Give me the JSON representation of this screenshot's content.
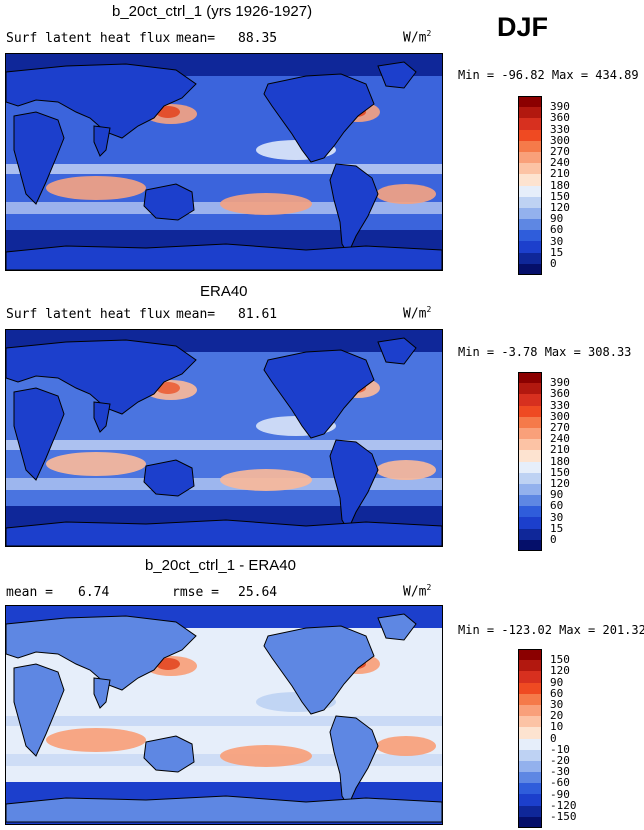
{
  "season": "DJF",
  "units_prefix": "W/m",
  "units_exp": "2",
  "panels": [
    {
      "title": "b_20ct_ctrl_1 (yrs 1926-1927)",
      "subtitle": "Surf latent heat flux",
      "stat1_label": "mean=",
      "stat1_value": "88.35",
      "stat2_label": "",
      "stat2_value": "",
      "minmax": "Min = -96.82 Max = 434.89",
      "colorbar_labels": [
        "390",
        "360",
        "330",
        "300",
        "270",
        "240",
        "210",
        "180",
        "150",
        "120",
        "90",
        "60",
        "30",
        "15",
        "0"
      ],
      "colorbar_colors": [
        "#8b0000",
        "#b2180f",
        "#d7301f",
        "#ef4a22",
        "#f57a4a",
        "#f9a07a",
        "#fcc3a5",
        "#fde3d0",
        "#e6eefa",
        "#bed2f3",
        "#93b1ed",
        "#5e87e3",
        "#2f5ddb",
        "#1c3fcc",
        "#0f2799",
        "#050f6a"
      ],
      "mean_level": 120,
      "field_colors": {
        "ocean": "#3b64dc",
        "warm": "#f3a282",
        "hot": "#e34a25",
        "pale": "#dce6f8",
        "land": "#1c3fcc",
        "polar": "#0f2799"
      }
    },
    {
      "title": "ERA40",
      "subtitle": "Surf latent heat flux",
      "stat1_label": "mean=",
      "stat1_value": "81.61",
      "stat2_label": "",
      "stat2_value": "",
      "minmax": "Min =  -3.78 Max = 308.33",
      "colorbar_labels": [
        "390",
        "360",
        "330",
        "300",
        "270",
        "240",
        "210",
        "180",
        "150",
        "120",
        "90",
        "60",
        "30",
        "15",
        "0"
      ],
      "colorbar_colors": [
        "#8b0000",
        "#b2180f",
        "#d7301f",
        "#ef4a22",
        "#f57a4a",
        "#f9a07a",
        "#fcc3a5",
        "#fde3d0",
        "#e6eefa",
        "#bed2f3",
        "#93b1ed",
        "#5e87e3",
        "#2f5ddb",
        "#1c3fcc",
        "#0f2799",
        "#050f6a"
      ],
      "field_colors": {
        "ocean": "#4a74e0",
        "warm": "#f9b99a",
        "hot": "#ea6138",
        "pale": "#d6e2f7",
        "land": "#1c3fcc",
        "polar": "#0f2799"
      }
    },
    {
      "title": "b_20ct_ctrl_1 - ERA40",
      "subtitle": "",
      "stat1_label": "mean =",
      "stat1_value": "6.74",
      "stat2_label": "rmse =",
      "stat2_value": "25.64",
      "minmax": "Min = -123.02 Max = 201.32",
      "colorbar_labels": [
        "150",
        "120",
        "90",
        "60",
        "30",
        "20",
        "10",
        "0",
        "-10",
        "-20",
        "-30",
        "-60",
        "-90",
        "-120",
        "-150"
      ],
      "colorbar_colors": [
        "#8b0000",
        "#b2180f",
        "#d7301f",
        "#ef4a22",
        "#f57a4a",
        "#f9a07a",
        "#fcc3a5",
        "#fde3d0",
        "#e6eefa",
        "#bed2f3",
        "#93b1ed",
        "#5e87e3",
        "#2f5ddb",
        "#1c3fcc",
        "#0f2799",
        "#050f6a"
      ],
      "field_colors": {
        "ocean": "#e6eefa",
        "warm": "#f9a07a",
        "hot": "#e34a25",
        "pale": "#bed2f3",
        "land": "#5e87e3",
        "polar": "#1c3fcc"
      }
    }
  ],
  "chart_data": [
    {
      "type": "heatmap",
      "title": "b_20ct_ctrl_1 (yrs 1926-1927)",
      "subtitle": "Surf latent heat flux",
      "units": "W/m^2",
      "mean": 88.35,
      "min": -96.82,
      "max": 434.89,
      "contour_levels": [
        0,
        15,
        30,
        60,
        90,
        120,
        150,
        180,
        210,
        240,
        270,
        300,
        330,
        360,
        390
      ],
      "season": "DJF"
    },
    {
      "type": "heatmap",
      "title": "ERA40",
      "subtitle": "Surf latent heat flux",
      "units": "W/m^2",
      "mean": 81.61,
      "min": -3.78,
      "max": 308.33,
      "contour_levels": [
        0,
        15,
        30,
        60,
        90,
        120,
        150,
        180,
        210,
        240,
        270,
        300,
        330,
        360,
        390
      ],
      "season": "DJF"
    },
    {
      "type": "heatmap",
      "title": "b_20ct_ctrl_1 - ERA40",
      "units": "W/m^2",
      "mean": 6.74,
      "rmse": 25.64,
      "min": -123.02,
      "max": 201.32,
      "contour_levels": [
        -150,
        -120,
        -90,
        -60,
        -30,
        -20,
        -10,
        0,
        10,
        20,
        30,
        60,
        90,
        120,
        150
      ],
      "season": "DJF"
    }
  ]
}
